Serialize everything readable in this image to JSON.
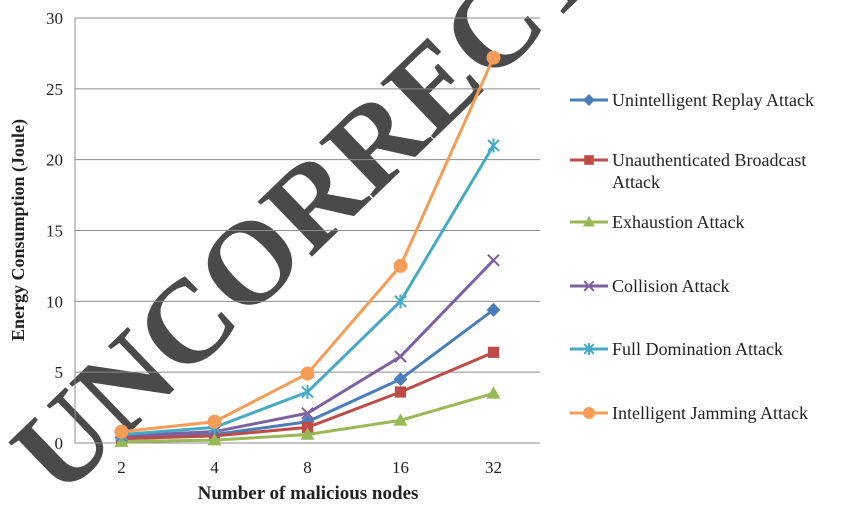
{
  "chart_data": {
    "type": "line",
    "watermark": "UNCORRECTED",
    "x_label": "Number of malicious nodes",
    "y_label": "Energy Consumption (Joule)",
    "categories": [
      "2",
      "4",
      "8",
      "16",
      "32"
    ],
    "ylim": [
      0,
      30
    ],
    "yticks": [
      0,
      5,
      10,
      15,
      20,
      25,
      30
    ],
    "grid": true,
    "legend": "right",
    "series": [
      {
        "name": "Unintelligent Replay Attack",
        "color": "#4a7ebb",
        "marker": "diamond",
        "values": [
          0.4,
          0.6,
          1.5,
          4.5,
          9.4
        ]
      },
      {
        "name": "Unauthenticated Broadcast Attack",
        "color": "#be4b48",
        "marker": "square",
        "values": [
          0.3,
          0.5,
          1.1,
          3.6,
          6.4
        ]
      },
      {
        "name": "Exhaustion Attack",
        "color": "#98b954",
        "marker": "triangle",
        "values": [
          0.1,
          0.2,
          0.6,
          1.6,
          3.5
        ]
      },
      {
        "name": "Collision Attack",
        "color": "#7d60a0",
        "marker": "x",
        "values": [
          0.5,
          0.8,
          2.1,
          6.1,
          12.9
        ]
      },
      {
        "name": "Full Domination Attack",
        "color": "#46aac5",
        "marker": "asterisk",
        "values": [
          0.6,
          1.1,
          3.6,
          10.0,
          21.0
        ]
      },
      {
        "name": "Intelligent Jamming Attack",
        "color": "#f59d56",
        "marker": "circle",
        "values": [
          0.8,
          1.5,
          4.9,
          12.5,
          27.2
        ]
      }
    ]
  }
}
